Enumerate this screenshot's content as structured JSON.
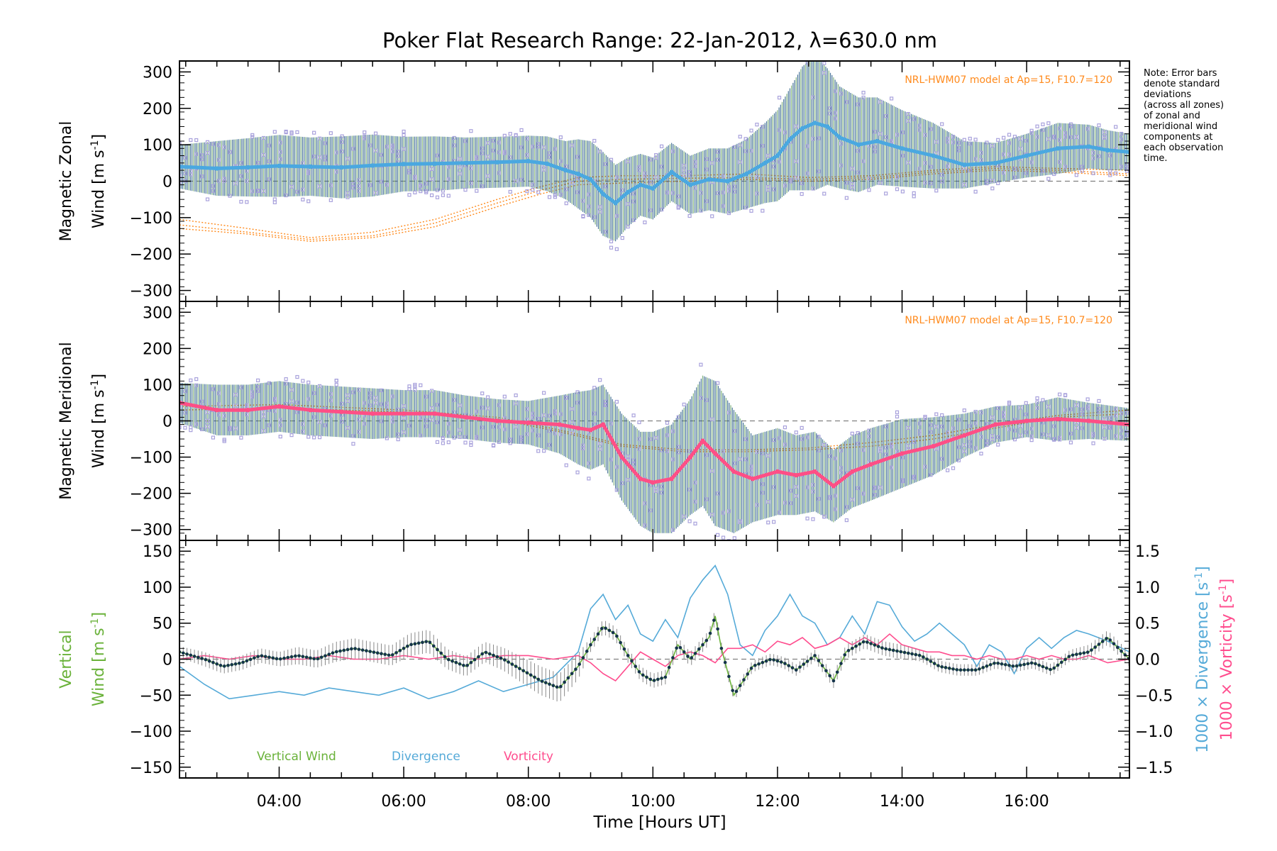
{
  "title": "Poker Flat Research Range: 22-Jan-2012, λ=630.0 nm",
  "note": "Note: Error bars\ndenote standard\ndeviations\n(across all zones)\nof zonal and\nmeridional wind\ncomponents at\neach observation\ntime.",
  "xlabel": "Time [Hours UT]",
  "colors": {
    "zonal": "#4aa8e0",
    "meridional": "#ff4f86",
    "errorbar": "#2b5f88",
    "scatter": "#a9a2dc",
    "model": "#ff8a1c",
    "vertical": "#6ab23a",
    "divergence": "#55aad8",
    "vorticity": "#ff4d8e",
    "vertical_points": "#15344a"
  },
  "chart_data": [
    {
      "type": "line",
      "panel": "zonal",
      "ylabel_line1": "Magnetic Zonal",
      "ylabel_line2": "Wind [m s",
      "ylabel_sup": "-1",
      "ylabel_tail": "]",
      "annotation": "NRL-HWM07 model at Ap=15, F10.7=120",
      "xlim": [
        2.4,
        17.65
      ],
      "ylim": [
        -330,
        330
      ],
      "yticks": [
        -300,
        -200,
        -100,
        0,
        100,
        200,
        300
      ],
      "yticklabels": [
        "−300",
        "−200",
        "−100",
        "0",
        "100",
        "200",
        "300"
      ],
      "xticks": [
        4,
        6,
        8,
        10,
        12,
        14,
        16
      ],
      "xticklabels": [
        "04:00",
        "06:00",
        "08:00",
        "10:00",
        "12:00",
        "14:00",
        "16:00"
      ],
      "spread_scale": 1.0,
      "series": [
        {
          "x": [
            2.4,
            3.0,
            3.5,
            4.0,
            4.5,
            5.0,
            5.5,
            6.0,
            6.5,
            7.0,
            7.5,
            8.0,
            8.3,
            8.6,
            8.8,
            9.0,
            9.2,
            9.4,
            9.6,
            9.8,
            10.0,
            10.3,
            10.6,
            10.9,
            11.2,
            11.5,
            11.8,
            12.0,
            12.2,
            12.4,
            12.6,
            12.8,
            13.0,
            13.3,
            13.6,
            14.0,
            14.5,
            15.0,
            15.5,
            16.0,
            16.5,
            17.0,
            17.3,
            17.65
          ],
          "values": [
            40,
            35,
            38,
            42,
            40,
            38,
            43,
            47,
            48,
            50,
            52,
            55,
            48,
            30,
            20,
            5,
            -35,
            -60,
            -30,
            -10,
            -20,
            25,
            -10,
            5,
            0,
            20,
            50,
            70,
            115,
            145,
            160,
            150,
            120,
            100,
            110,
            90,
            70,
            45,
            50,
            70,
            90,
            95,
            85,
            80
          ],
          "spread": [
            60,
            75,
            80,
            85,
            80,
            85,
            85,
            75,
            75,
            70,
            70,
            70,
            75,
            80,
            95,
            105,
            115,
            105,
            95,
            85,
            85,
            80,
            80,
            85,
            90,
            95,
            110,
            125,
            140,
            170,
            185,
            160,
            140,
            130,
            120,
            105,
            90,
            65,
            55,
            60,
            70,
            60,
            55,
            50
          ]
        }
      ],
      "model_curves": [
        {
          "x": [
            2.4,
            3.5,
            4.5,
            5.5,
            6.5,
            7.5,
            8.2,
            8.8,
            9.5,
            10.5,
            11.5,
            12.5,
            13.5,
            14.5,
            15.5,
            16.5,
            17.65
          ],
          "values": [
            -120,
            -140,
            -160,
            -150,
            -115,
            -60,
            -25,
            0,
            5,
            8,
            10,
            5,
            10,
            25,
            35,
            30,
            20
          ]
        },
        {
          "x": [
            2.4,
            3.5,
            4.5,
            5.5,
            6.5,
            7.5,
            8.2,
            8.8,
            9.5,
            10.5,
            11.5,
            12.5,
            13.5,
            14.5,
            15.5,
            16.5,
            17.65
          ],
          "values": [
            -105,
            -130,
            -155,
            -140,
            -105,
            -50,
            -15,
            10,
            15,
            15,
            20,
            10,
            15,
            30,
            40,
            35,
            30
          ]
        },
        {
          "x": [
            2.4,
            3.5,
            4.5,
            5.5,
            6.5,
            7.5,
            8.2,
            8.8,
            9.5,
            10.5,
            11.5,
            12.5,
            13.5,
            14.5,
            15.5,
            16.5,
            17.65
          ],
          "values": [
            -130,
            -145,
            -165,
            -155,
            -125,
            -70,
            -35,
            -10,
            -5,
            0,
            5,
            0,
            5,
            20,
            30,
            25,
            15
          ]
        }
      ]
    },
    {
      "type": "line",
      "panel": "meridional",
      "ylabel_line1": "Magnetic Meridional",
      "ylabel_line2": "Wind [m s",
      "ylabel_sup": "-1",
      "ylabel_tail": "]",
      "annotation": "NRL-HWM07 model at Ap=15, F10.7=120",
      "xlim": [
        2.4,
        17.65
      ],
      "ylim": [
        -330,
        330
      ],
      "yticks": [
        -300,
        -200,
        -100,
        0,
        100,
        200,
        300
      ],
      "yticklabels": [
        "−300",
        "−200",
        "−100",
        "0",
        "100",
        "200",
        "300"
      ],
      "xticks": [
        4,
        6,
        8,
        10,
        12,
        14,
        16
      ],
      "xticklabels": [
        "04:00",
        "06:00",
        "08:00",
        "10:00",
        "12:00",
        "14:00",
        "16:00"
      ],
      "spread_scale": 1.0,
      "series": [
        {
          "x": [
            2.4,
            3.0,
            3.5,
            4.0,
            4.5,
            5.0,
            5.5,
            6.0,
            6.5,
            7.0,
            7.5,
            8.0,
            8.5,
            8.8,
            9.0,
            9.2,
            9.5,
            9.8,
            10.0,
            10.3,
            10.6,
            10.8,
            11.0,
            11.3,
            11.6,
            12.0,
            12.3,
            12.6,
            12.9,
            13.2,
            13.5,
            14.0,
            14.5,
            15.0,
            15.5,
            16.0,
            16.5,
            17.0,
            17.65
          ],
          "values": [
            50,
            30,
            30,
            40,
            30,
            25,
            20,
            20,
            20,
            10,
            0,
            -5,
            -10,
            -20,
            -25,
            -10,
            -100,
            -160,
            -170,
            -160,
            -100,
            -55,
            -90,
            -140,
            -160,
            -140,
            -150,
            -140,
            -180,
            -140,
            -120,
            -90,
            -70,
            -40,
            -10,
            0,
            5,
            0,
            -10
          ],
          "spread": [
            55,
            70,
            70,
            70,
            70,
            70,
            70,
            65,
            65,
            60,
            60,
            60,
            80,
            100,
            110,
            110,
            120,
            130,
            140,
            150,
            160,
            180,
            200,
            170,
            120,
            120,
            110,
            110,
            100,
            100,
            100,
            95,
            80,
            60,
            50,
            45,
            60,
            50,
            45
          ]
        }
      ],
      "model_curves": [
        {
          "x": [
            2.4,
            4.0,
            6.0,
            7.5,
            8.5,
            9.5,
            10.5,
            11.5,
            12.5,
            13.5,
            14.5,
            15.5,
            16.5,
            17.65
          ],
          "values": [
            30,
            35,
            25,
            5,
            -30,
            -70,
            -85,
            -85,
            -80,
            -70,
            -50,
            -20,
            10,
            20
          ]
        },
        {
          "x": [
            2.4,
            4.0,
            6.0,
            7.5,
            8.5,
            9.5,
            10.5,
            11.5,
            12.5,
            13.5,
            14.5,
            15.5,
            16.5,
            17.65
          ],
          "values": [
            40,
            45,
            30,
            10,
            -25,
            -65,
            -80,
            -80,
            -75,
            -60,
            -40,
            -10,
            15,
            30
          ]
        }
      ]
    },
    {
      "type": "line",
      "panel": "vertical",
      "ylabel_line1": "Vertical",
      "ylabel_line2": "Wind [m s",
      "ylabel_sup": "-1",
      "ylabel_tail": "]",
      "ylabel_right1": "1000 × Divergence [s",
      "ylabel_right2": "1000 × Vorticity [s",
      "ylabel_right_sup": "-1",
      "ylabel_right_tail": "]",
      "xlim": [
        2.4,
        17.65
      ],
      "ylim": [
        -165,
        165
      ],
      "yticks": [
        -150,
        -100,
        -50,
        0,
        50,
        100,
        150
      ],
      "yticklabels": [
        "−150",
        "−100",
        "−50",
        "0",
        "50",
        "100",
        "150"
      ],
      "y2lim": [
        -1.65,
        1.65
      ],
      "y2ticks": [
        -1.5,
        -1.0,
        -0.5,
        0.0,
        0.5,
        1.0,
        1.5
      ],
      "y2ticklabels": [
        "−1.5",
        "−1.0",
        "−0.5",
        "0.0",
        "0.5",
        "1.0",
        "1.5"
      ],
      "xticks": [
        4,
        6,
        8,
        10,
        12,
        14,
        16
      ],
      "xticklabels": [
        "04:00",
        "06:00",
        "08:00",
        "10:00",
        "12:00",
        "14:00",
        "16:00"
      ],
      "xlabel": "Time [Hours UT]",
      "legend": [
        "Vertical Wind",
        "Divergence",
        "Vorticity"
      ],
      "series": [
        {
          "name": "Vertical Wind",
          "axis": "left",
          "x": [
            2.4,
            2.8,
            3.1,
            3.4,
            3.7,
            4.0,
            4.3,
            4.6,
            4.9,
            5.2,
            5.5,
            5.8,
            6.1,
            6.4,
            6.7,
            7.0,
            7.3,
            7.6,
            7.9,
            8.2,
            8.5,
            8.8,
            9.0,
            9.2,
            9.4,
            9.6,
            9.8,
            10.0,
            10.2,
            10.4,
            10.6,
            10.9,
            11.0,
            11.1,
            11.3,
            11.6,
            11.9,
            12.1,
            12.3,
            12.6,
            12.9,
            13.1,
            13.4,
            13.7,
            14.0,
            14.3,
            14.6,
            14.9,
            15.2,
            15.5,
            15.8,
            16.1,
            16.4,
            16.7,
            17.0,
            17.3,
            17.65
          ],
          "values": [
            10,
            0,
            -10,
            -5,
            5,
            0,
            5,
            0,
            10,
            15,
            10,
            5,
            20,
            25,
            0,
            -10,
            10,
            0,
            -15,
            -30,
            -40,
            -10,
            20,
            45,
            35,
            5,
            -20,
            -30,
            -25,
            20,
            0,
            30,
            60,
            15,
            -50,
            -10,
            0,
            -5,
            -15,
            5,
            -30,
            10,
            25,
            15,
            10,
            5,
            -10,
            -15,
            -15,
            -5,
            -10,
            -5,
            -15,
            5,
            10,
            30,
            0
          ],
          "errors": [
            8,
            10,
            10,
            10,
            10,
            10,
            12,
            12,
            14,
            14,
            14,
            14,
            16,
            16,
            14,
            14,
            14,
            16,
            18,
            20,
            20,
            18,
            10,
            10,
            10,
            10,
            10,
            10,
            10,
            10,
            10,
            10,
            10,
            8,
            8,
            8,
            8,
            8,
            8,
            8,
            10,
            10,
            10,
            10,
            10,
            8,
            8,
            8,
            8,
            8,
            8,
            8,
            8,
            8,
            10,
            10,
            10
          ]
        },
        {
          "name": "Divergence",
          "axis": "right",
          "x": [
            2.4,
            2.8,
            3.2,
            3.6,
            4.0,
            4.4,
            4.8,
            5.2,
            5.6,
            6.0,
            6.4,
            6.8,
            7.2,
            7.6,
            8.0,
            8.4,
            8.8,
            9.0,
            9.2,
            9.4,
            9.6,
            9.8,
            10.0,
            10.2,
            10.4,
            10.6,
            10.8,
            11.0,
            11.2,
            11.4,
            11.6,
            11.8,
            12.0,
            12.2,
            12.4,
            12.6,
            12.8,
            13.0,
            13.2,
            13.4,
            13.6,
            13.8,
            14.0,
            14.2,
            14.4,
            14.6,
            14.8,
            15.0,
            15.2,
            15.4,
            15.6,
            15.8,
            16.0,
            16.2,
            16.4,
            16.6,
            16.8,
            17.0,
            17.3,
            17.65
          ],
          "values": [
            -0.1,
            -0.35,
            -0.55,
            -0.5,
            -0.45,
            -0.5,
            -0.4,
            -0.45,
            -0.5,
            -0.4,
            -0.55,
            -0.45,
            -0.3,
            -0.45,
            -0.35,
            -0.25,
            0.1,
            0.7,
            0.9,
            0.55,
            0.75,
            0.35,
            0.25,
            0.55,
            0.3,
            0.85,
            1.1,
            1.3,
            0.9,
            0.2,
            0.05,
            0.4,
            0.6,
            0.9,
            0.6,
            0.5,
            0.2,
            0.3,
            0.6,
            0.35,
            0.8,
            0.75,
            0.45,
            0.25,
            0.35,
            0.5,
            0.35,
            0.2,
            -0.1,
            0.2,
            0.1,
            -0.2,
            0.15,
            0.3,
            0.15,
            0.3,
            0.4,
            0.35,
            0.25,
            0.1
          ]
        },
        {
          "name": "Vorticity",
          "axis": "right",
          "x": [
            2.4,
            2.8,
            3.2,
            3.6,
            4.0,
            4.4,
            4.8,
            5.2,
            5.6,
            6.0,
            6.4,
            6.8,
            7.2,
            7.6,
            8.0,
            8.4,
            8.8,
            9.0,
            9.2,
            9.4,
            9.6,
            9.8,
            10.0,
            10.2,
            10.4,
            10.6,
            10.8,
            11.0,
            11.2,
            11.4,
            11.6,
            11.8,
            12.0,
            12.2,
            12.4,
            12.6,
            12.8,
            13.0,
            13.2,
            13.4,
            13.6,
            13.8,
            14.0,
            14.2,
            14.4,
            14.6,
            14.8,
            15.0,
            15.2,
            15.4,
            15.6,
            15.8,
            16.0,
            16.2,
            16.4,
            16.6,
            16.8,
            17.0,
            17.3,
            17.65
          ],
          "values": [
            0.0,
            0.05,
            0.0,
            0.05,
            0.0,
            0.0,
            0.05,
            0.0,
            0.0,
            0.05,
            0.0,
            0.05,
            0.0,
            0.05,
            0.05,
            0.0,
            0.05,
            -0.05,
            -0.2,
            -0.3,
            -0.1,
            0.1,
            0.0,
            -0.1,
            0.05,
            0.1,
            0.05,
            -0.05,
            0.15,
            0.15,
            0.2,
            0.1,
            0.25,
            0.2,
            0.3,
            0.15,
            0.2,
            0.3,
            0.2,
            0.3,
            0.2,
            0.35,
            0.2,
            0.15,
            0.1,
            0.1,
            0.05,
            0.05,
            0.0,
            0.05,
            0.0,
            0.0,
            0.05,
            0.0,
            0.05,
            0.0,
            0.0,
            0.05,
            -0.05,
            0.0
          ]
        }
      ]
    }
  ]
}
